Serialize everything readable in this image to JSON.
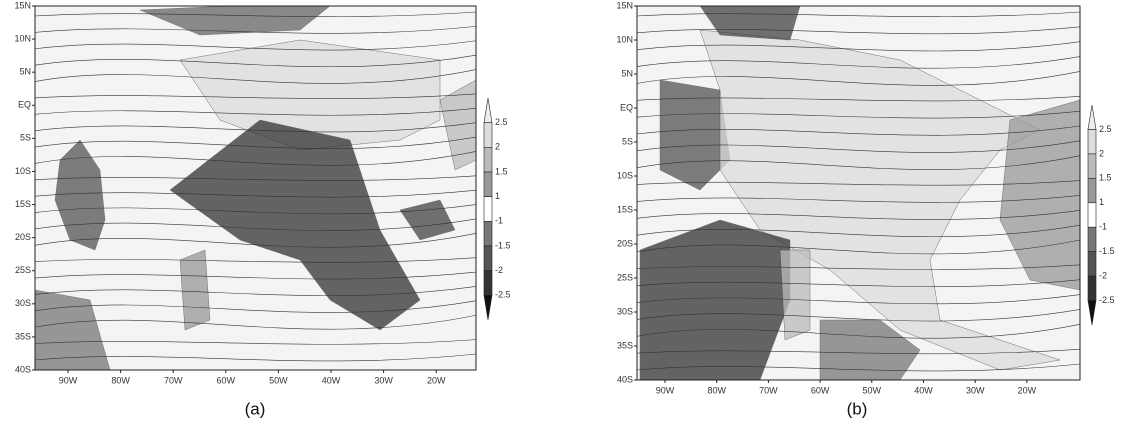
{
  "panels": [
    {
      "caption": "(a)",
      "xticks": [
        "90W",
        "80W",
        "70W",
        "60W",
        "50W",
        "40W",
        "30W",
        "20W"
      ],
      "yticks": [
        "15N",
        "10N",
        "5N",
        "EQ",
        "5S",
        "10S",
        "15S",
        "20S",
        "25S",
        "30S",
        "35S",
        "40S"
      ],
      "colorbar": [
        2.5,
        2,
        1.5,
        1,
        -1,
        -1.5,
        -2,
        -2.5
      ]
    },
    {
      "caption": "(b)",
      "xticks": [
        "90W",
        "80W",
        "70W",
        "60W",
        "50W",
        "40W",
        "30W",
        "20W"
      ],
      "yticks": [
        "15N",
        "10N",
        "5N",
        "EQ",
        "5S",
        "10S",
        "15S",
        "20S",
        "25S",
        "30S",
        "35S",
        "40S"
      ],
      "colorbar": [
        2.5,
        2,
        1.5,
        1,
        -1,
        -1.5,
        -2,
        -2.5
      ]
    }
  ]
}
